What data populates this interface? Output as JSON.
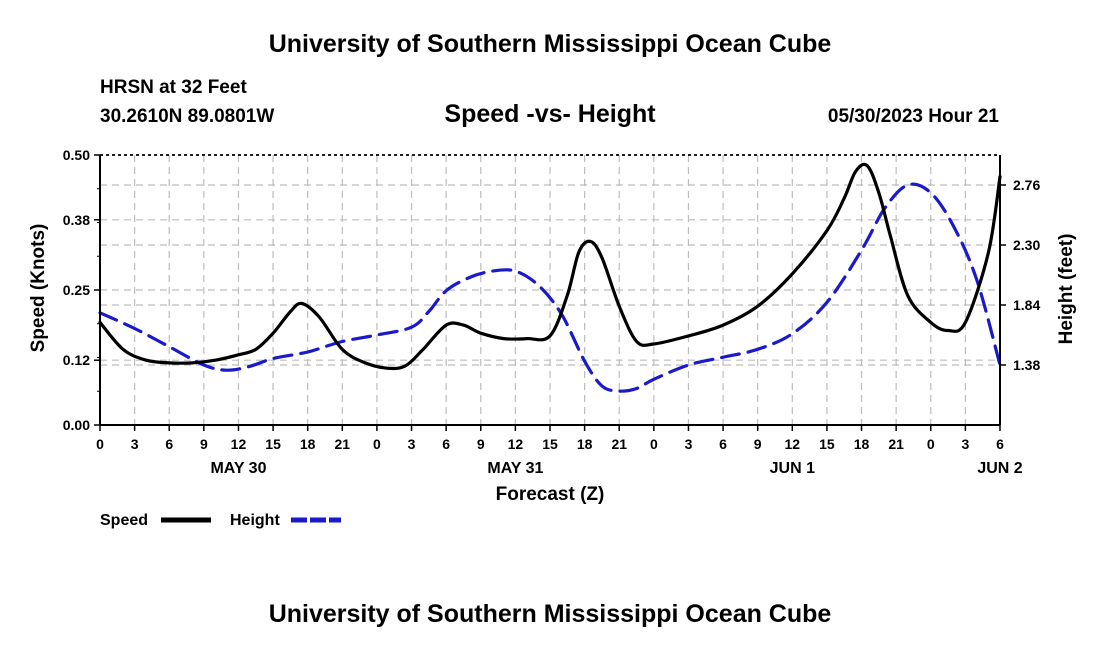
{
  "header": {
    "title": "University of Southern Mississippi Ocean Cube",
    "station": "HRSN at 32 Feet",
    "location": "30.2610N  89.0801W",
    "date": "05/30/2023 Hour 21"
  },
  "footer": {
    "title": "University of Southern Mississippi Ocean Cube"
  },
  "chart_data": {
    "type": "line",
    "title": "Speed -vs- Height",
    "xlabel": "Forecast (Z)",
    "ylabel_left": "Speed (Knots)",
    "ylabel_right": "Height (feet)",
    "x_ticks": [
      "0",
      "3",
      "6",
      "9",
      "12",
      "15",
      "18",
      "21",
      "0",
      "3",
      "6",
      "9",
      "12",
      "15",
      "18",
      "21",
      "0",
      "3",
      "6",
      "9",
      "12",
      "15",
      "18",
      "21",
      "0",
      "3",
      "6"
    ],
    "day_labels": [
      {
        "label": "MAY 30",
        "hour": 12
      },
      {
        "label": "MAY 31",
        "hour": 36
      },
      {
        "label": "JUN 1",
        "hour": 60
      },
      {
        "label": "JUN 2",
        "hour": 78
      }
    ],
    "xlim": [
      0,
      78
    ],
    "ylim_left": [
      0,
      0.5
    ],
    "left_ticks": [
      "0.00",
      "0.12",
      "0.25",
      "0.38",
      "0.50"
    ],
    "ylim_right": [
      0.92,
      2.99
    ],
    "right_ticks": [
      "1.38",
      "1.84",
      "2.30",
      "2.76"
    ],
    "grid": true,
    "series": [
      {
        "name": "Speed",
        "axis": "left",
        "color": "#000000",
        "style": "solid",
        "x": [
          0,
          2,
          4,
          6,
          8,
          10,
          12,
          13.5,
          15,
          16.5,
          17.5,
          19,
          21,
          23,
          25,
          26.5,
          28,
          30,
          31.5,
          33,
          35,
          37,
          39,
          40.5,
          41.5,
          42.5,
          43.5,
          45,
          46.5,
          48,
          51,
          54,
          57,
          60,
          63,
          64.5,
          65.5,
          66.5,
          67.5,
          68.5,
          70,
          72,
          73.5,
          75,
          77,
          78
        ],
        "values": [
          0.19,
          0.14,
          0.12,
          0.115,
          0.115,
          0.12,
          0.13,
          0.14,
          0.17,
          0.21,
          0.225,
          0.2,
          0.14,
          0.115,
          0.105,
          0.11,
          0.14,
          0.185,
          0.185,
          0.17,
          0.16,
          0.16,
          0.165,
          0.24,
          0.32,
          0.34,
          0.31,
          0.22,
          0.155,
          0.15,
          0.165,
          0.185,
          0.22,
          0.28,
          0.36,
          0.42,
          0.47,
          0.48,
          0.43,
          0.35,
          0.24,
          0.19,
          0.175,
          0.19,
          0.32,
          0.46
        ]
      },
      {
        "name": "Height",
        "axis": "right",
        "color": "#1a1acc",
        "style": "dashed",
        "x": [
          0,
          3,
          6,
          9,
          11,
          13,
          15,
          18,
          21,
          24,
          27,
          28.5,
          30,
          32,
          34,
          36,
          38,
          40,
          42,
          43.5,
          45,
          46.5,
          48,
          51,
          54,
          57,
          60,
          63,
          66,
          68,
          70,
          72,
          74,
          76,
          78
        ],
        "values": [
          1.78,
          1.66,
          1.52,
          1.38,
          1.34,
          1.37,
          1.43,
          1.48,
          1.56,
          1.61,
          1.67,
          1.79,
          1.95,
          2.05,
          2.1,
          2.1,
          1.99,
          1.77,
          1.41,
          1.22,
          1.18,
          1.2,
          1.27,
          1.38,
          1.44,
          1.5,
          1.62,
          1.86,
          2.26,
          2.58,
          2.76,
          2.7,
          2.44,
          2.03,
          1.38
        ]
      }
    ]
  },
  "legend": [
    {
      "label": "Speed",
      "color": "#000000",
      "style": "solid"
    },
    {
      "label": "Height",
      "color": "#1a1acc",
      "style": "dashed"
    }
  ]
}
